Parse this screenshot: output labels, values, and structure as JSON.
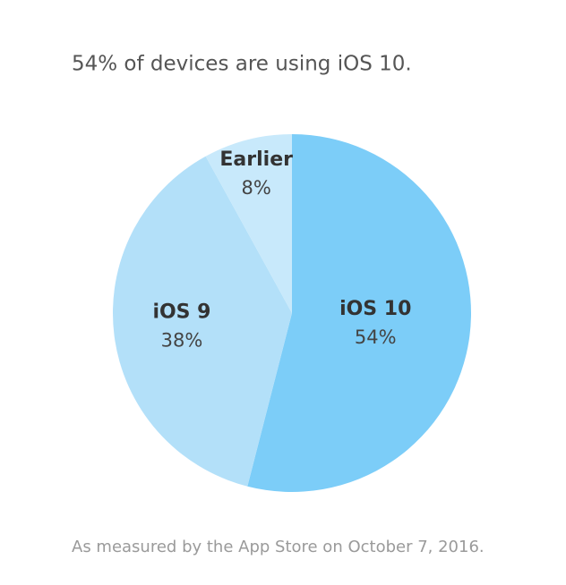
{
  "chart_data": {
    "type": "pie",
    "title": "54% of devices are using iOS 10.",
    "footnote": "As measured by the App Store on October 7, 2016.",
    "categories": [
      "iOS 10",
      "iOS 9",
      "Earlier"
    ],
    "values": [
      54,
      38,
      8
    ],
    "value_labels": [
      "54%",
      "38%",
      "8%"
    ],
    "colors": [
      "#7ccdf8",
      "#b3e0f9",
      "#c8e9fb"
    ]
  }
}
